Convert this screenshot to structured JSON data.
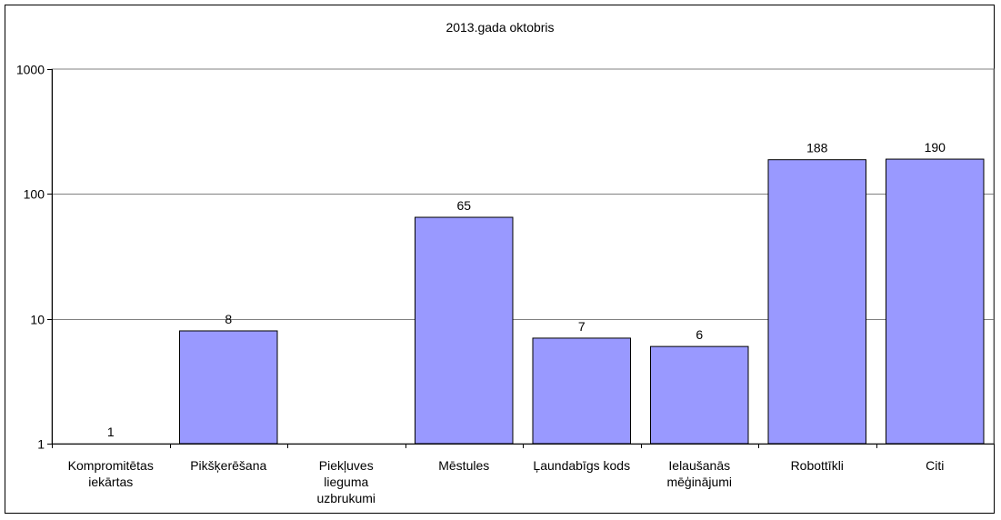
{
  "chart_data": {
    "type": "bar",
    "title": "2013.gada oktobris",
    "xlabel": "",
    "ylabel": "",
    "yscale": "log",
    "ylim": [
      1,
      1000
    ],
    "yticks": [
      "1",
      "10",
      "100",
      "1000"
    ],
    "grid": true,
    "legend": "none",
    "bar_color": "#9999ff",
    "categories": [
      [
        "Kompromitētas",
        "iekārtas"
      ],
      [
        "Pikšķerēšana"
      ],
      [
        "Piekļuves",
        "lieguma",
        "uzbrukumi"
      ],
      [
        "Mēstules"
      ],
      [
        "Ļaundabīgs kods"
      ],
      [
        "Ielaušanās",
        "mēģinājumi"
      ],
      [
        "Robottīkli"
      ],
      [
        "Citi"
      ]
    ],
    "values": [
      1,
      8,
      null,
      65,
      7,
      6,
      188,
      190
    ],
    "data_labels": [
      "1",
      "8",
      "",
      "65",
      "7",
      "6",
      "188",
      "190"
    ]
  }
}
